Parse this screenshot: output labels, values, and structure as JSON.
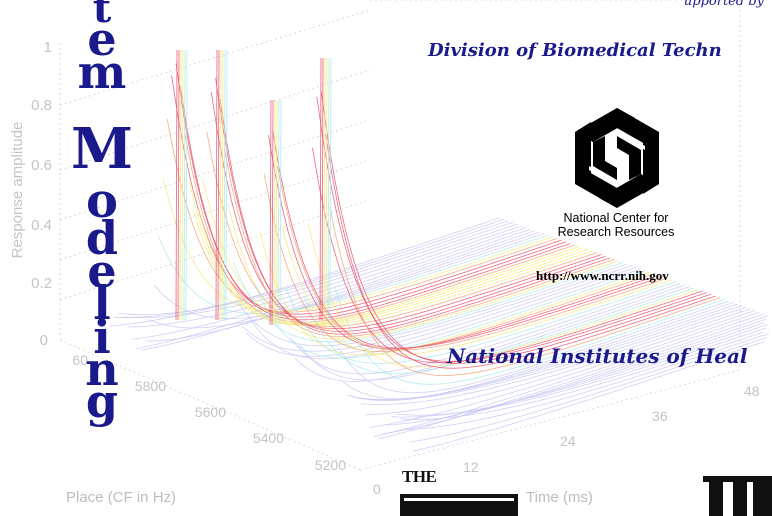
{
  "plot": {
    "y_axis_label": "Response amplitude",
    "y_ticks": [
      "0",
      "0.2",
      "0.4",
      "0.6",
      "0.8",
      "1"
    ],
    "x_axis_label": "Place (CF in Hz)",
    "x_ticks": [
      "5200",
      "5400",
      "5600",
      "5800",
      "60"
    ],
    "time_axis_label": "Time (ms)",
    "time_ticks": [
      "0",
      "12",
      "24",
      "36",
      "48"
    ]
  },
  "vertical_title": {
    "letters": [
      "t",
      "e",
      "m",
      "M",
      "o",
      "d",
      "e",
      "l",
      "i",
      "n",
      "g"
    ]
  },
  "header_fragment": "upported by",
  "division": "Division of Biomedical Techn",
  "ncrr": {
    "name_line1": "National Center for",
    "name_line2": "Research Resources",
    "url": "http://www.ncrr.nih.gov"
  },
  "nih": "National Institutes of Heal",
  "logos": {
    "partial_logo_text": "THE"
  },
  "colors": {
    "title_navy": "#1a1a8c",
    "axis_gray": "#c4c4c4",
    "surface_peak": "#e8506a",
    "surface_mid": "#f5e97a",
    "surface_low": "#a8e8f0",
    "surface_base": "#c8c8f4"
  },
  "icons": {
    "ncrr_logo": "ncrr-swirl-logo"
  }
}
